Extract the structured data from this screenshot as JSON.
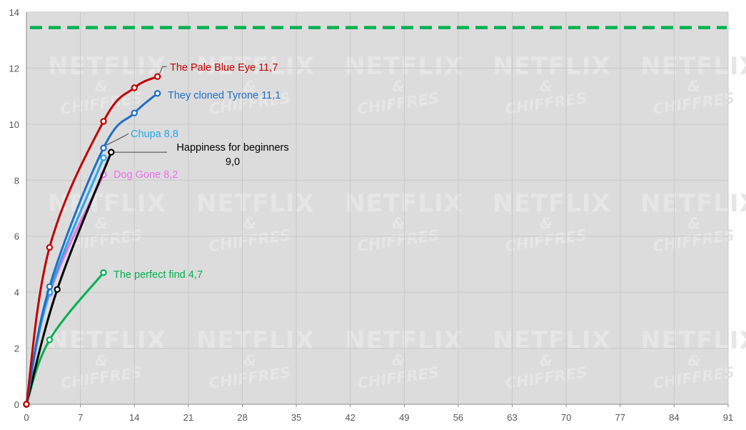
{
  "watermark": {
    "line1": "NETFLIX",
    "line2": "&",
    "line3": "CHIFFRES"
  },
  "chart_data": {
    "type": "line",
    "title": "",
    "xlabel": "",
    "ylabel": "",
    "xlim": [
      0,
      91
    ],
    "ylim": [
      0,
      14
    ],
    "x_ticks": [
      0,
      7,
      14,
      21,
      28,
      35,
      42,
      49,
      56,
      63,
      70,
      77,
      84,
      91
    ],
    "y_ticks": [
      0,
      2,
      4,
      6,
      8,
      10,
      12,
      14
    ],
    "grid": true,
    "legend": "none",
    "colors": {
      "background": "#dcdcdc",
      "gridline": "#c8c8c8",
      "reference_line": "#00b050"
    },
    "reference_line": {
      "y": 13.45,
      "color": "#00b050",
      "style": "dashed"
    },
    "series": [
      {
        "name": "The Pale Blue Eye",
        "label": "The Pale Blue Eye 11,7",
        "color": "#c00000",
        "points": [
          [
            0,
            0
          ],
          [
            3,
            5.6
          ],
          [
            10,
            10.1
          ],
          [
            14,
            11.3
          ],
          [
            17,
            11.7
          ]
        ]
      },
      {
        "name": "They cloned Tyrone",
        "label": "They cloned Tyrone 11,1",
        "color": "#1f6fc4",
        "points": [
          [
            0,
            0
          ],
          [
            3,
            4.2
          ],
          [
            10,
            9.15
          ],
          [
            14,
            10.4
          ],
          [
            17,
            11.1
          ]
        ]
      },
      {
        "name": "Chupa",
        "label": "Chupa 8,8",
        "color": "#25a8e6",
        "points": [
          [
            0,
            0
          ],
          [
            3,
            4.0
          ],
          [
            10,
            8.8
          ]
        ]
      },
      {
        "name": "Dog Gone",
        "label": "Dog Gone 8,2",
        "color": "#ea6fe8",
        "points": [
          [
            0,
            0
          ],
          [
            3,
            3.95
          ],
          [
            10,
            8.2
          ]
        ]
      },
      {
        "name": "Happiness for beginners",
        "label": "Happiness for beginners",
        "label_line2": "9,0",
        "color": "#000000",
        "points": [
          [
            0,
            0
          ],
          [
            4,
            4.1
          ],
          [
            11,
            9.0
          ]
        ]
      },
      {
        "name": "The perfect find",
        "label": "The perfect find 4,7",
        "color": "#00b050",
        "points": [
          [
            0,
            0
          ],
          [
            3,
            2.3
          ],
          [
            10,
            4.7
          ]
        ]
      }
    ]
  }
}
